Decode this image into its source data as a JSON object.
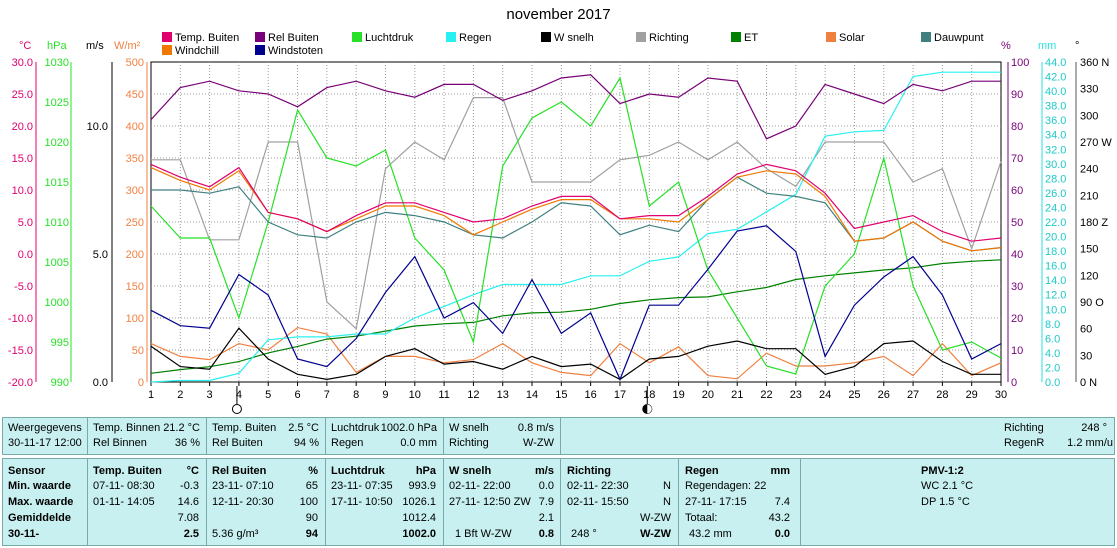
{
  "title": "november 2017",
  "legend": [
    {
      "label": "Temp. Buiten",
      "color": "#e0006e"
    },
    {
      "label": "Rel Buiten",
      "color": "#780078"
    },
    {
      "label": "Luchtdruk",
      "color": "#28e028"
    },
    {
      "label": "Regen",
      "color": "#28f0f0"
    },
    {
      "label": "W snelh",
      "color": "#000000"
    },
    {
      "label": "Richting",
      "color": "#a0a0a0"
    },
    {
      "label": "ET",
      "color": "#008000"
    },
    {
      "label": "Solar",
      "color": "#f08040"
    },
    {
      "label": "Dauwpunt",
      "color": "#408080"
    },
    {
      "label": "Windchill",
      "color": "#f07800"
    },
    {
      "label": "Windstoten",
      "color": "#000090"
    }
  ],
  "axis_units": {
    "c": "°C",
    "hpa": "hPa",
    "ms": "m/s",
    "wm2": "W/m²",
    "pct": "%",
    "mm": "mm",
    "deg": "°"
  },
  "axis_ticks": {
    "c": [
      "30.0",
      "25.0",
      "20.0",
      "15.0",
      "10.0",
      "5.0",
      "0.0",
      "-5.0",
      "-10.0",
      "-15.0",
      "-20.0"
    ],
    "hpa": [
      "1030",
      "1025",
      "1020",
      "1015",
      "1010",
      "1005",
      "1000",
      "995",
      "990"
    ],
    "ms": [
      "10.0",
      "5.0",
      "0.0"
    ],
    "wm2": [
      "500",
      "450",
      "400",
      "350",
      "300",
      "250",
      "200",
      "150",
      "100",
      "50",
      "0"
    ],
    "pct": [
      "100",
      "90",
      "80",
      "70",
      "60",
      "50",
      "40",
      "30",
      "20",
      "10",
      "0"
    ],
    "mm": [
      "44.0",
      "42.0",
      "40.0",
      "38.0",
      "36.0",
      "34.0",
      "32.0",
      "30.0",
      "28.0",
      "26.0",
      "24.0",
      "22.0",
      "20.0",
      "18.0",
      "16.0",
      "14.0",
      "12.0",
      "10.0",
      "8.0",
      "6.0",
      "4.0",
      "2.0",
      "0.0"
    ],
    "deg": [
      "360 N",
      "330",
      "300",
      "270 W",
      "240",
      "210",
      "180 Z",
      "150",
      "120",
      "90 O",
      "60",
      "30",
      "0 N"
    ],
    "x": [
      "1",
      "2",
      "3",
      "4",
      "5",
      "6",
      "7",
      "8",
      "9",
      "10",
      "11",
      "12",
      "13",
      "14",
      "15",
      "16",
      "17",
      "18",
      "19",
      "20",
      "21",
      "22",
      "23",
      "24",
      "25",
      "26",
      "27",
      "28",
      "29",
      "30"
    ]
  },
  "chart_data": {
    "type": "line",
    "x": [
      1,
      2,
      3,
      4,
      5,
      6,
      7,
      8,
      9,
      10,
      11,
      12,
      13,
      14,
      15,
      16,
      17,
      18,
      19,
      20,
      21,
      22,
      23,
      24,
      25,
      26,
      27,
      28,
      29,
      30
    ],
    "ylabel": "°C / hPa / m/s / W/m² / % / mm / °",
    "moon_phases": [
      {
        "day": 4,
        "phase": "full"
      },
      {
        "day": 18,
        "phase": "new"
      }
    ],
    "series": [
      {
        "name": "Temp. Buiten",
        "unit": "°C",
        "color": "#e0006e",
        "values": [
          14.0,
          12.0,
          10.5,
          13.5,
          6.5,
          5.5,
          3.5,
          6.0,
          8.0,
          8.0,
          6.5,
          5.0,
          5.5,
          7.5,
          9.0,
          9.0,
          5.5,
          6.0,
          6.0,
          9.0,
          12.5,
          14.0,
          13.0,
          9.5,
          4.0,
          5.0,
          6.0,
          3.5,
          2.0,
          2.5
        ]
      },
      {
        "name": "Rel Buiten",
        "unit": "%",
        "color": "#780078",
        "values": [
          82,
          92,
          94,
          91,
          90,
          86,
          92,
          94,
          91,
          89,
          93,
          93,
          88,
          91,
          95,
          96,
          87,
          90,
          89,
          95,
          94,
          76,
          80,
          93,
          90,
          87,
          93,
          91,
          94,
          94
        ]
      },
      {
        "name": "Luchtdruk",
        "unit": "hPa",
        "color": "#28e028",
        "values": [
          1012,
          1008,
          1008,
          998,
          1010,
          1024,
          1018,
          1017,
          1019,
          1008,
          1004,
          995,
          1017,
          1023,
          1025,
          1022,
          1028,
          1012,
          1015,
          1004,
          998,
          992,
          991,
          1002,
          1006,
          1018,
          1002,
          994,
          995,
          993
        ]
      },
      {
        "name": "Regen",
        "unit": "mm",
        "color": "#28f0f0",
        "values": [
          0.0,
          0.2,
          0.2,
          1.2,
          5.8,
          6.2,
          6.2,
          6.6,
          6.6,
          8.8,
          10.4,
          12.0,
          13.4,
          13.4,
          13.4,
          14.6,
          14.6,
          16.6,
          17.2,
          20.4,
          21.0,
          23.4,
          25.8,
          33.8,
          34.4,
          34.6,
          42.0,
          42.6,
          42.6,
          42.6
        ]
      },
      {
        "name": "W snelh",
        "unit": "m/s",
        "color": "#000000",
        "values": [
          1.4,
          0.6,
          0.5,
          2.1,
          0.9,
          0.3,
          0.1,
          0.3,
          1.0,
          1.3,
          0.7,
          0.8,
          0.5,
          1.0,
          0.6,
          0.7,
          0.1,
          0.9,
          1.0,
          1.4,
          1.6,
          1.3,
          1.3,
          0.3,
          0.6,
          1.5,
          1.6,
          0.8,
          0.3,
          0.3
        ]
      },
      {
        "name": "Richting",
        "unit": "°",
        "color": "#a0a0a0",
        "values": [
          250,
          250,
          160,
          160,
          270,
          270,
          90,
          60,
          240,
          270,
          250,
          320,
          320,
          225,
          225,
          225,
          250,
          255,
          270,
          250,
          270,
          240,
          220,
          270,
          270,
          270,
          225,
          240,
          150,
          248
        ]
      },
      {
        "name": "ET",
        "unit": "mm",
        "color": "#008000",
        "values": [
          1.2,
          1.7,
          2.1,
          2.8,
          4.0,
          4.9,
          5.9,
          6.3,
          7.0,
          7.7,
          8.0,
          8.2,
          9.1,
          9.5,
          9.6,
          10.0,
          10.8,
          11.3,
          11.6,
          11.7,
          12.4,
          13.0,
          14.1,
          14.6,
          15.0,
          15.4,
          15.7,
          16.3,
          16.6,
          16.8
        ]
      },
      {
        "name": "Solar",
        "unit": "W/m²",
        "color": "#f08040",
        "values": [
          60,
          40,
          35,
          60,
          50,
          85,
          75,
          15,
          40,
          40,
          30,
          35,
          60,
          30,
          15,
          10,
          60,
          30,
          55,
          10,
          5,
          45,
          25,
          25,
          30,
          40,
          10,
          60,
          10,
          30
        ]
      },
      {
        "name": "Dauwpunt",
        "unit": "°C",
        "color": "#408080",
        "values": [
          10.0,
          10.0,
          9.5,
          10.5,
          5.0,
          3.0,
          2.5,
          5.0,
          6.5,
          6.0,
          5.0,
          3.0,
          2.5,
          5.0,
          8.0,
          7.5,
          3.0,
          4.5,
          3.5,
          8.5,
          12.0,
          9.5,
          9.0,
          8.0,
          2.0,
          2.5,
          5.0,
          2.0,
          0.5,
          1.0
        ]
      },
      {
        "name": "Windchill",
        "unit": "°C",
        "color": "#f07800",
        "values": [
          13.5,
          11.5,
          10.0,
          13.0,
          6.5,
          5.5,
          3.5,
          5.5,
          7.5,
          7.5,
          6.0,
          3.0,
          5.0,
          7.0,
          8.5,
          8.5,
          5.5,
          5.5,
          5.0,
          8.5,
          12.0,
          13.0,
          12.5,
          9.0,
          2.0,
          2.5,
          5.0,
          2.0,
          0.5,
          1.0
        ]
      },
      {
        "name": "Windstoten",
        "unit": "m/s",
        "color": "#000090",
        "values": [
          2.8,
          2.2,
          2.1,
          4.2,
          3.4,
          0.9,
          0.6,
          1.7,
          3.5,
          4.9,
          2.5,
          3.1,
          1.9,
          4.0,
          1.9,
          2.7,
          0.1,
          3.0,
          3.0,
          4.4,
          5.9,
          6.1,
          5.1,
          1.0,
          3.0,
          4.1,
          4.9,
          3.4,
          0.9,
          1.5
        ]
      }
    ]
  },
  "current": {
    "weergegevens_label": "Weergegevens",
    "datetime": "30-11-17 12:00",
    "temp_binnen_label": "Temp. Binnen",
    "temp_binnen": "21.2 °C",
    "rel_binnen_label": "Rel Binnen",
    "rel_binnen": "36 %",
    "temp_buiten_label": "Temp. Buiten",
    "temp_buiten": "2.5 °C",
    "rel_buiten_label": "Rel Buiten",
    "rel_buiten": "94 %",
    "luchtdruk_label": "Luchtdruk",
    "luchtdruk": "1002.0 hPa",
    "regen_label": "Regen",
    "regen": "0.0 mm",
    "wsnelh_label": "W snelh",
    "wsnelh": "0.8 m/s",
    "richting_label": "Richting",
    "richting": "W-ZW",
    "richting2_label": "Richting",
    "richting2": "248 °",
    "regenr_label": "RegenR",
    "regenr": "1.2 mm/u"
  },
  "stats": {
    "sensor": {
      "head": "Sensor",
      "rows": [
        "Min. waarde",
        "Max. waarde",
        "Gemiddelde",
        "30-11-"
      ]
    },
    "temp": {
      "head": "Temp. Buiten",
      "unit": "°C",
      "rows": [
        [
          "07-11-  08:30",
          "-0.3"
        ],
        [
          "01-11-  14:05",
          "14.6"
        ],
        [
          "",
          "7.08"
        ],
        [
          "",
          "2.5"
        ]
      ]
    },
    "rel": {
      "head": "Rel Buiten",
      "unit": "%",
      "rows": [
        [
          "23-11-  07:10",
          "65"
        ],
        [
          "12-11-  20:30",
          "100"
        ],
        [
          "",
          "90"
        ],
        [
          "5.36 g/m³",
          "94"
        ]
      ]
    },
    "druk": {
      "head": "Luchtdruk",
      "unit": "hPa",
      "rows": [
        [
          "23-11-  07:35",
          "993.9"
        ],
        [
          "17-11-  10:50",
          "1026.1"
        ],
        [
          "",
          "1012.4"
        ],
        [
          "",
          "1002.0"
        ]
      ]
    },
    "wind": {
      "head": "W snelh",
      "unit": "m/s",
      "rows": [
        [
          "02-11-  22:00",
          "0.0"
        ],
        [
          "27-11-  12:50 ZW",
          "7.9"
        ],
        [
          "",
          "2.1"
        ],
        [
          "1 Bft W-ZW",
          "0.8"
        ]
      ]
    },
    "richting": {
      "head": "Richting",
      "rows": [
        [
          "02-11-  22:30",
          "N"
        ],
        [
          "02-11-  15:50",
          "N"
        ],
        [
          "",
          "W-ZW"
        ],
        [
          "248 °",
          "W-ZW"
        ]
      ]
    },
    "regen": {
      "head": "Regen",
      "unit": "mm",
      "rows": [
        [
          "Regendagen: 22",
          ""
        ],
        [
          "27-11-  17:15",
          "7.4"
        ],
        [
          "Totaal:",
          "43.2"
        ],
        [
          "43.2 mm",
          "0.0"
        ]
      ]
    },
    "pmv": {
      "head": "PMV-1:2",
      "rows": [
        "WC 2.1 °C",
        "DP 1.5 °C"
      ]
    }
  }
}
